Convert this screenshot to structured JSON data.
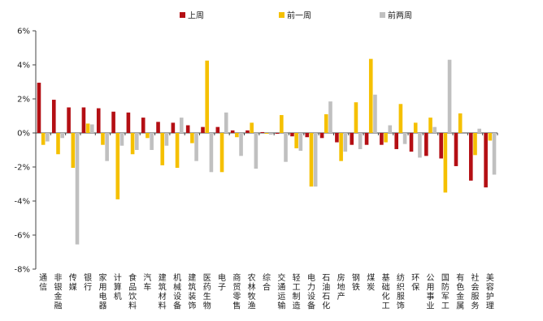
{
  "chart_data": {
    "type": "bar",
    "title": "",
    "xlabel": "",
    "ylabel": "",
    "ylim": [
      -8,
      6
    ],
    "yticks": [
      "-8%",
      "-6%",
      "-4%",
      "-2%",
      "0%",
      "2%",
      "4%",
      "6%"
    ],
    "ytick_values": [
      -8,
      -6,
      -4,
      -2,
      0,
      2,
      4,
      6
    ],
    "legend_position": "top",
    "grid": false,
    "categories": [
      "通信",
      "非银金融",
      "传媒",
      "银行",
      "家用电器",
      "计算机",
      "食品饮料",
      "汽车",
      "建筑材料",
      "机械设备",
      "建筑装饰",
      "医药生物",
      "电子",
      "商贸零售",
      "农林牧渔",
      "综合",
      "交通运输",
      "轻工制造",
      "电力设备",
      "石油石化",
      "房地产",
      "钢铁",
      "煤炭",
      "基础化工",
      "纺织服饰",
      "环保",
      "公用事业",
      "国防军工",
      "有色金属",
      "社会服务",
      "美容护理"
    ],
    "series": [
      {
        "name": "上周",
        "color": "#b40f14",
        "values": [
          2.95,
          1.95,
          1.5,
          1.5,
          1.45,
          1.25,
          1.2,
          0.9,
          0.65,
          0.6,
          0.45,
          0.35,
          0.35,
          0.15,
          0.15,
          0.05,
          -0.05,
          -0.2,
          -0.25,
          -0.3,
          -0.55,
          -0.7,
          -0.7,
          -0.7,
          -0.95,
          -1.1,
          -1.35,
          -1.5,
          -1.95,
          -2.8,
          -3.2
        ]
      },
      {
        "name": "前一周",
        "color": "#f5c000",
        "values": [
          -0.7,
          -1.25,
          -2.05,
          0.55,
          -0.7,
          -3.9,
          -1.25,
          -0.3,
          -1.9,
          -2.05,
          -0.6,
          4.25,
          -2.3,
          -0.25,
          0.6,
          -0.05,
          1.05,
          -0.9,
          -3.15,
          1.1,
          -1.65,
          1.8,
          4.35,
          -0.55,
          1.7,
          0.6,
          0.9,
          -3.5,
          1.15,
          -1.3,
          -0.45
        ]
      },
      {
        "name": "前两周",
        "color": "#c0c0c0",
        "values": [
          -0.5,
          -0.3,
          -6.55,
          0.5,
          -1.65,
          -0.75,
          -1.0,
          -1.0,
          -0.75,
          0.9,
          -1.65,
          -2.3,
          1.2,
          -1.35,
          -2.1,
          -0.1,
          -1.7,
          -1.05,
          -3.15,
          1.85,
          -1.1,
          -0.95,
          2.25,
          0.45,
          -0.65,
          -1.45,
          0.35,
          4.3,
          0.0,
          0.25,
          -2.45
        ]
      }
    ]
  }
}
